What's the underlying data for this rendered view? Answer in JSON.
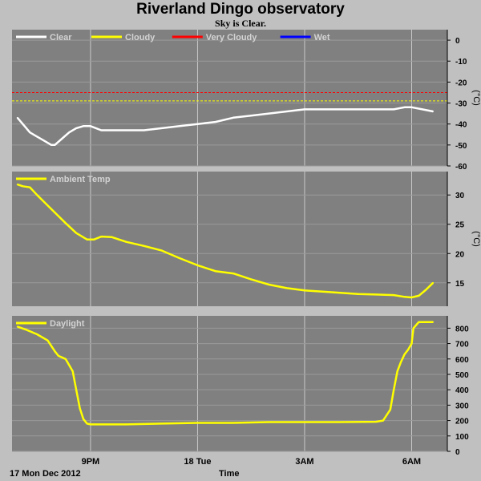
{
  "title": "Riverland Dingo observatory",
  "subtitle": "Sky is Clear.",
  "footer": {
    "date": "17 Mon Dec 2012",
    "xlabel": "Time"
  },
  "colors": {
    "plot_bg": "#808080",
    "page_bg": "#c0c0c0",
    "grid": "#c8c8c8",
    "legend_text": "#d3d3d3",
    "clear": "#ffffff",
    "cloudy": "#ffff00",
    "very_cloudy": "#ff0000",
    "wet": "#0000ff"
  },
  "x_ticks": [
    {
      "hour": 21,
      "label": "9PM"
    },
    {
      "hour": 24,
      "label": "18 Tue"
    },
    {
      "hour": 27,
      "label": "3AM"
    },
    {
      "hour": 30,
      "label": "6AM"
    }
  ],
  "x_range": [
    18.8,
    31.0
  ],
  "chart_data": [
    {
      "type": "line",
      "panel": "sky",
      "ylabel": "(°C)",
      "ylim": [
        -60,
        5
      ],
      "yticks": [
        0,
        -10,
        -20,
        -30,
        -40,
        -50,
        -60
      ],
      "legend": [
        {
          "name": "Clear",
          "color": "#ffffff"
        },
        {
          "name": "Cloudy",
          "color": "#ffff00"
        },
        {
          "name": "Very Cloudy",
          "color": "#ff0000"
        },
        {
          "name": "Wet",
          "color": "#0000ff"
        }
      ],
      "thresholds": [
        {
          "name": "Very Cloudy",
          "value": -25,
          "color": "#ff0000"
        },
        {
          "name": "Cloudy",
          "value": -29,
          "color": "#ffff00"
        }
      ],
      "series": [
        {
          "name": "Clear",
          "color": "#ffffff",
          "x": [
            18.95,
            19.1,
            19.3,
            19.5,
            19.7,
            19.9,
            20.0,
            20.2,
            20.4,
            20.6,
            20.8,
            21.0,
            21.3,
            21.6,
            22.0,
            22.5,
            23.0,
            23.5,
            24.0,
            24.5,
            25.0,
            25.5,
            26.0,
            26.5,
            27.0,
            27.5,
            28.0,
            28.5,
            29.0,
            29.5,
            29.8,
            30.0,
            30.3,
            30.6
          ],
          "values": [
            -37,
            -40,
            -44,
            -46,
            -48,
            -50,
            -50,
            -47,
            -44,
            -42,
            -41,
            -41,
            -43,
            -43,
            -43,
            -43,
            -42,
            -41,
            -40,
            -39,
            -37,
            -36,
            -35,
            -34,
            -33,
            -33,
            -33,
            -33,
            -33,
            -33,
            -32,
            -32,
            -33,
            -34
          ]
        }
      ]
    },
    {
      "type": "line",
      "panel": "ambient",
      "ylabel": "(°C)",
      "ylim": [
        11,
        34
      ],
      "yticks": [
        30,
        25,
        20,
        15
      ],
      "legend": [
        {
          "name": "Ambient Temp",
          "color": "#ffff00"
        }
      ],
      "series": [
        {
          "name": "Ambient Temp",
          "color": "#ffff00",
          "x": [
            18.95,
            19.1,
            19.3,
            19.5,
            19.7,
            20.0,
            20.3,
            20.6,
            20.9,
            21.1,
            21.3,
            21.6,
            22.0,
            22.5,
            23.0,
            23.5,
            24.0,
            24.5,
            25.0,
            25.5,
            26.0,
            26.5,
            27.0,
            27.5,
            28.0,
            28.5,
            29.0,
            29.5,
            29.8,
            30.0,
            30.2,
            30.4,
            30.6
          ],
          "values": [
            31.8,
            31.5,
            31.3,
            30.0,
            28.8,
            27.0,
            25.2,
            23.5,
            22.4,
            22.4,
            22.9,
            22.8,
            22.0,
            21.3,
            20.5,
            19.2,
            18.0,
            17.0,
            16.6,
            15.6,
            14.7,
            14.1,
            13.7,
            13.5,
            13.3,
            13.1,
            13.0,
            12.9,
            12.6,
            12.5,
            12.8,
            13.8,
            15.0
          ]
        }
      ]
    },
    {
      "type": "line",
      "panel": "daylight",
      "ylabel": "",
      "ylim": [
        0,
        880
      ],
      "yticks": [
        800,
        700,
        600,
        500,
        400,
        300,
        200,
        100,
        0
      ],
      "legend": [
        {
          "name": "Daylight",
          "color": "#ffff00"
        }
      ],
      "series": [
        {
          "name": "Daylight",
          "color": "#ffff00",
          "x": [
            18.95,
            19.2,
            19.5,
            19.8,
            20.0,
            20.1,
            20.3,
            20.5,
            20.6,
            20.7,
            20.8,
            20.9,
            21.0,
            21.5,
            22.0,
            23.0,
            24.0,
            25.0,
            26.0,
            27.0,
            28.0,
            29.0,
            29.2,
            29.4,
            29.5,
            29.6,
            29.7,
            29.8,
            29.9,
            30.0,
            30.05,
            30.2,
            30.6
          ],
          "values": [
            810,
            790,
            760,
            720,
            650,
            620,
            600,
            520,
            400,
            280,
            210,
            180,
            175,
            175,
            175,
            180,
            185,
            185,
            190,
            190,
            190,
            192,
            200,
            270,
            400,
            520,
            580,
            630,
            660,
            700,
            800,
            840,
            840
          ]
        }
      ]
    }
  ]
}
